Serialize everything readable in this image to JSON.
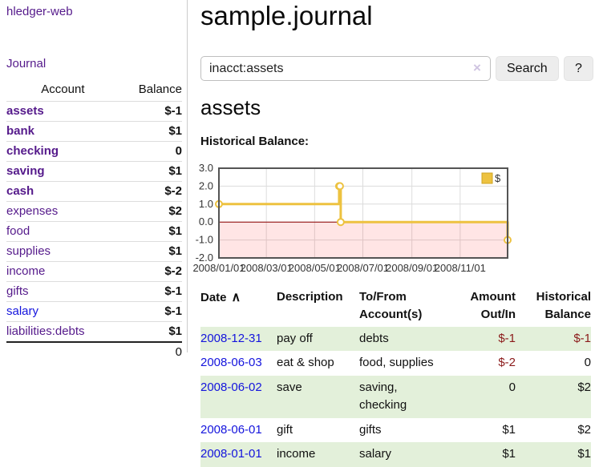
{
  "app": {
    "brand": "hledger-web"
  },
  "sidebar": {
    "journal_link": "Journal",
    "accounts_table": {
      "headers": {
        "account": "Account",
        "balance": "Balance"
      },
      "rows": [
        {
          "name": "assets",
          "balance": "$-1",
          "depth": 1,
          "bold": true,
          "link_style": "purple",
          "balance_style": "neg-strong"
        },
        {
          "name": "bank",
          "balance": "$1",
          "depth": 2,
          "bold": true,
          "link_style": "purple",
          "balance_style": "pos"
        },
        {
          "name": "checking",
          "balance": "0",
          "depth": 3,
          "bold": true,
          "link_style": "purple",
          "balance_style": "pos"
        },
        {
          "name": "saving",
          "balance": "$1",
          "depth": 3,
          "bold": true,
          "link_style": "purple",
          "balance_style": "pos"
        },
        {
          "name": "cash",
          "balance": "$-2",
          "depth": 2,
          "bold": true,
          "link_style": "purple",
          "balance_style": "neg-strong"
        },
        {
          "name": "expenses",
          "balance": "$2",
          "depth": 1,
          "bold": false,
          "link_style": "purple",
          "balance_style": "pos"
        },
        {
          "name": "food",
          "balance": "$1",
          "depth": 2,
          "bold": false,
          "link_style": "purple",
          "balance_style": "pos"
        },
        {
          "name": "supplies",
          "balance": "$1",
          "depth": 2,
          "bold": false,
          "link_style": "purple",
          "balance_style": "pos"
        },
        {
          "name": "income",
          "balance": "$-2",
          "depth": 1,
          "bold": false,
          "link_style": "purple",
          "balance_style": "neg-soft"
        },
        {
          "name": "gifts",
          "balance": "$-1",
          "depth": 2,
          "bold": false,
          "link_style": "purple",
          "balance_style": "neg-soft"
        },
        {
          "name": "salary",
          "balance": "$-1",
          "depth": 2,
          "bold": false,
          "link_style": "blue",
          "balance_style": "neg-soft"
        },
        {
          "name": "liabilities:debts",
          "balance": "$1",
          "depth": 1,
          "bold": false,
          "link_style": "purple",
          "balance_style": "pos"
        }
      ],
      "total": "0"
    }
  },
  "main": {
    "title": "sample.journal",
    "search": {
      "value": "inacct:assets",
      "clear_icon": "×",
      "search_button": "Search",
      "help_button": "?"
    },
    "account_heading": "assets",
    "register": {
      "sort_column": "Date",
      "sort_icon": "∧",
      "headers": [
        "Date",
        "Description",
        "To/From Account(s)",
        "Amount Out/In",
        "Historical Balance"
      ],
      "rows": [
        {
          "date": "2008-12-31",
          "description": "pay off",
          "accounts": "debts",
          "amount": "$-1",
          "amount_style": "neg",
          "balance": "$-1",
          "balance_style": "neg"
        },
        {
          "date": "2008-06-03",
          "description": "eat & shop",
          "accounts": "food, supplies",
          "amount": "$-2",
          "amount_style": "neg",
          "balance": "0",
          "balance_style": ""
        },
        {
          "date": "2008-06-02",
          "description": "save",
          "accounts": "saving,\nchecking",
          "amount": "0",
          "amount_style": "",
          "balance": "$2",
          "balance_style": ""
        },
        {
          "date": "2008-06-01",
          "description": "gift",
          "accounts": "gifts",
          "amount": "$1",
          "amount_style": "",
          "balance": "$2",
          "balance_style": ""
        },
        {
          "date": "2008-01-01",
          "description": "income",
          "accounts": "salary",
          "amount": "$1",
          "amount_style": "",
          "balance": "$1",
          "balance_style": ""
        }
      ]
    }
  },
  "chart_data": {
    "type": "line",
    "step": true,
    "title": "Historical Balance:",
    "series": [
      {
        "name": "$",
        "color": "#edc240",
        "points": [
          [
            "2008-01-01",
            1
          ],
          [
            "2008-06-01",
            2
          ],
          [
            "2008-06-02",
            2
          ],
          [
            "2008-06-03",
            0
          ],
          [
            "2008-12-31",
            -1
          ]
        ]
      }
    ],
    "x_range": [
      "2008-01-01",
      "2008-12-31"
    ],
    "ylim": [
      -2,
      3
    ],
    "y_ticks": [
      "3.0",
      "2.0",
      "1.0",
      "0.0",
      "-1.0",
      "-2.0"
    ],
    "x_ticks": [
      "2008/01/01",
      "2008/03/01",
      "2008/05/01",
      "2008/07/01",
      "2008/09/01",
      "2008/11/01"
    ],
    "legend": {
      "label": "$",
      "position": "top-right"
    },
    "grid": true,
    "colors": {
      "line": "#edc240",
      "point_fill": "#ffffff",
      "legend_box_border": "#cfa424",
      "grid": "#dcdcdc",
      "border": "#545454",
      "zero_line": "#8b0000",
      "negative_region": "rgba(255,0,0,0.10)"
    }
  },
  "colors": {
    "link_purple": "#551a8b",
    "link_blue": "#1414dd",
    "negative_strong": "#7d1616",
    "negative_soft": "#c9706b",
    "negative_table": "#8b1a1a",
    "row_stripe_green": "#e3f0da"
  }
}
